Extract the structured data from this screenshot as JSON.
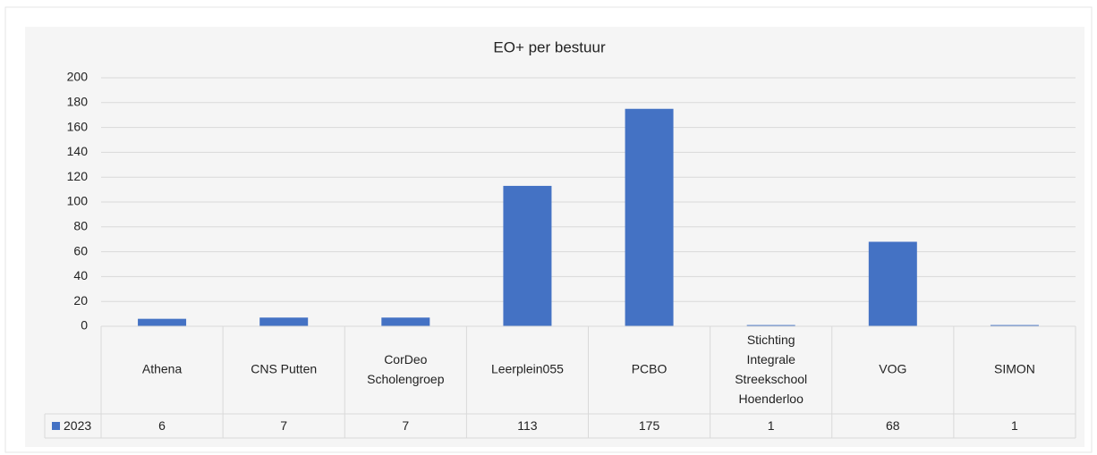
{
  "chart_data": {
    "type": "bar",
    "title": "EO+ per bestuur",
    "categories": [
      "Athena",
      "CNS Putten",
      "CorDeo Scholengroep",
      "Leerplein055",
      "PCBO",
      "Stichting Integrale Streekschool Hoenderloo",
      "VOG",
      "SIMON"
    ],
    "series": [
      {
        "name": "2023",
        "color": "#4472c4",
        "values": [
          6,
          7,
          7,
          113,
          175,
          1,
          68,
          1
        ]
      }
    ],
    "ylim": [
      0,
      200
    ],
    "yticks": [
      0,
      20,
      40,
      60,
      80,
      100,
      120,
      140,
      160,
      180,
      200
    ],
    "grid": true
  }
}
